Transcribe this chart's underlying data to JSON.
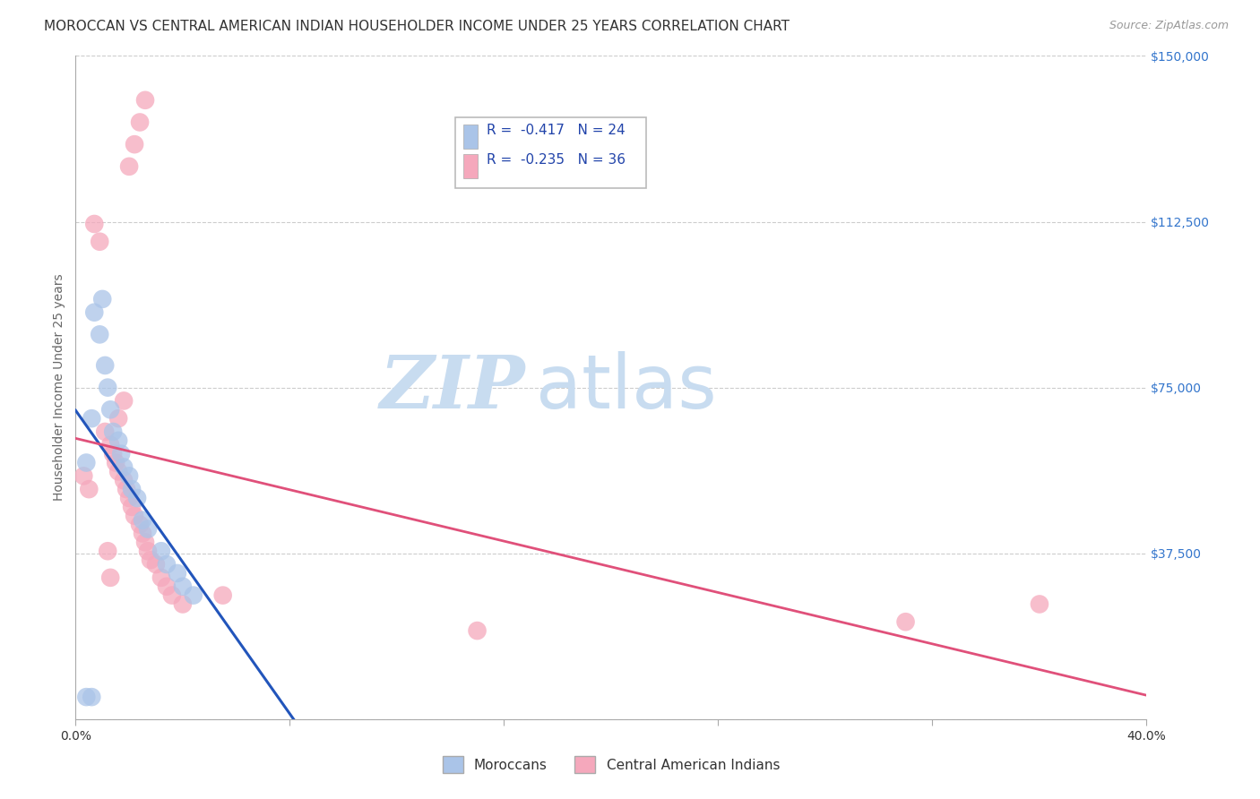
{
  "title": "MOROCCAN VS CENTRAL AMERICAN INDIAN HOUSEHOLDER INCOME UNDER 25 YEARS CORRELATION CHART",
  "source": "Source: ZipAtlas.com",
  "ylabel": "Householder Income Under 25 years",
  "xlim": [
    0.0,
    0.4
  ],
  "ylim": [
    0,
    150000
  ],
  "yticks": [
    0,
    37500,
    75000,
    112500,
    150000
  ],
  "ytick_labels": [
    "",
    "$37,500",
    "$75,000",
    "$112,500",
    "$150,000"
  ],
  "xticks": [
    0.0,
    0.08,
    0.16,
    0.24,
    0.32,
    0.4
  ],
  "xtick_labels": [
    "0.0%",
    "",
    "",
    "",
    "",
    "40.0%"
  ],
  "moroccan_R": "-0.417",
  "moroccan_N": "24",
  "central_american_R": "-0.235",
  "central_american_N": "36",
  "moroccan_color": "#aac4e8",
  "central_american_color": "#f5a8bc",
  "moroccan_line_color": "#2255bb",
  "central_american_line_color": "#e0507a",
  "legend_label_moroccan": "Moroccans",
  "legend_label_central": "Central American Indians",
  "moroccan_x": [
    0.004,
    0.006,
    0.007,
    0.009,
    0.01,
    0.011,
    0.012,
    0.013,
    0.014,
    0.016,
    0.017,
    0.018,
    0.02,
    0.021,
    0.023,
    0.025,
    0.027,
    0.032,
    0.034,
    0.038,
    0.04,
    0.044,
    0.004,
    0.006
  ],
  "moroccan_y": [
    58000,
    68000,
    92000,
    87000,
    95000,
    80000,
    75000,
    70000,
    65000,
    63000,
    60000,
    57000,
    55000,
    52000,
    50000,
    45000,
    43000,
    38000,
    35000,
    33000,
    30000,
    28000,
    5000,
    5000
  ],
  "central_american_x": [
    0.003,
    0.005,
    0.007,
    0.009,
    0.011,
    0.013,
    0.014,
    0.015,
    0.016,
    0.018,
    0.019,
    0.02,
    0.021,
    0.022,
    0.024,
    0.025,
    0.026,
    0.027,
    0.028,
    0.03,
    0.016,
    0.018,
    0.02,
    0.022,
    0.024,
    0.026,
    0.032,
    0.034,
    0.036,
    0.04,
    0.055,
    0.15,
    0.31,
    0.36,
    0.012,
    0.013
  ],
  "central_american_y": [
    55000,
    52000,
    112000,
    108000,
    65000,
    62000,
    60000,
    58000,
    56000,
    54000,
    52000,
    50000,
    48000,
    46000,
    44000,
    42000,
    40000,
    38000,
    36000,
    35000,
    68000,
    72000,
    125000,
    130000,
    135000,
    140000,
    32000,
    30000,
    28000,
    26000,
    28000,
    20000,
    22000,
    26000,
    38000,
    32000
  ],
  "background_color": "#ffffff",
  "grid_color": "#cccccc",
  "watermark_zip_color": "#c8dcf0",
  "watermark_atlas_color": "#c8dcf0",
  "title_fontsize": 11,
  "axis_label_fontsize": 10,
  "tick_fontsize": 10,
  "legend_color": "#2244aa"
}
